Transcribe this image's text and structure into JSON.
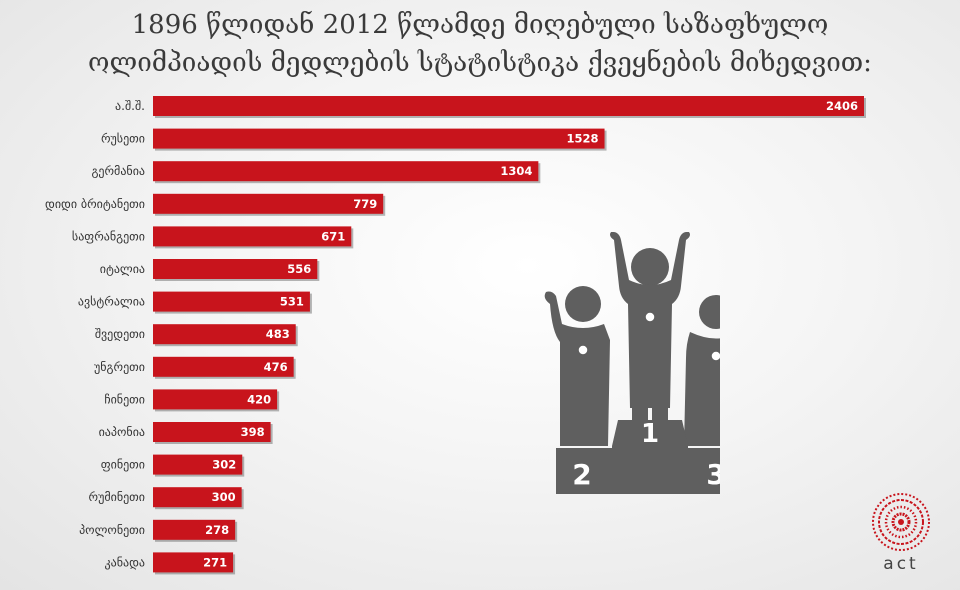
{
  "title_lines": [
    "1896 წლიდან 2012 წლამდე მიღებული საზაფხულო",
    "ოლიმპიადის მედლების სტატისტიკა ქვეყნების მიხედვით:"
  ],
  "chart_data": {
    "type": "bar",
    "orientation": "horizontal",
    "title": "1896 წლიდან 2012 წლამდე მიღებული საზაფხულო ოლიმპიადის მედლების სტატისტიკა ქვეყნების მიხედვით:",
    "categories": [
      "ა.შ.შ.",
      "რუსეთი",
      "გერმანია",
      "დიდი ბრიტანეთი",
      "საფრანგეთი",
      "იტალია",
      "ავსტრალია",
      "შვედეთი",
      "უნგრეთი",
      "ჩინეთი",
      "იაპონია",
      "ფინეთი",
      "რუმინეთი",
      "პოლონეთი",
      "კანადა"
    ],
    "values": [
      2406,
      1528,
      1304,
      779,
      671,
      556,
      531,
      483,
      476,
      420,
      398,
      302,
      300,
      278,
      271
    ],
    "xlabel": "",
    "ylabel": "",
    "xlim": [
      0,
      2406
    ],
    "data_labels": true,
    "grid": false,
    "legend": "none",
    "bar_color": "#c8141c"
  },
  "podium": {
    "places": [
      "2",
      "1",
      "3"
    ],
    "icon": "podium-winners-icon",
    "color": "#5f5f5f"
  },
  "logo": {
    "text": "act",
    "color": "#c8141c"
  }
}
